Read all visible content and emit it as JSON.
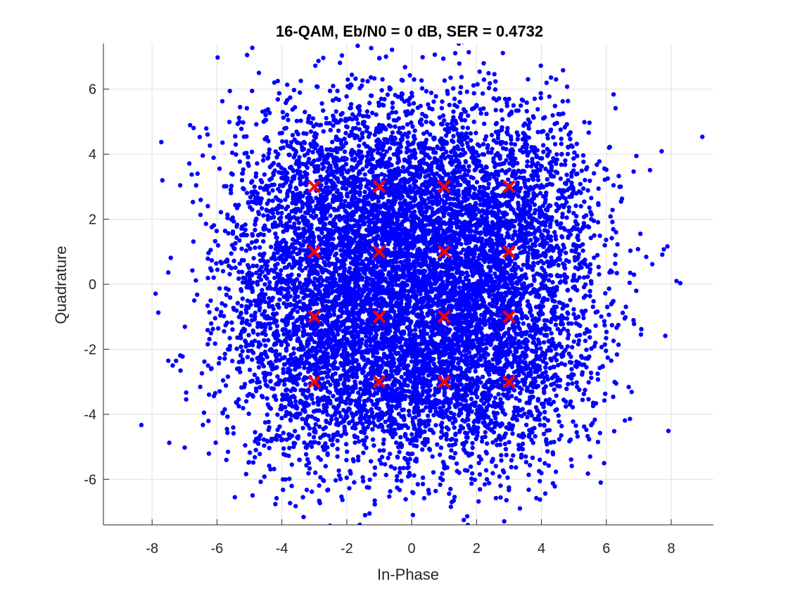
{
  "chart_data": {
    "type": "scatter",
    "title": "16-QAM, Eb/N0 = 0 dB, SER = 0.4732",
    "xlabel": "In-Phase",
    "ylabel": "Quadrature",
    "xlim": [
      -9.5,
      9.3
    ],
    "ylim": [
      -7.4,
      7.4
    ],
    "xticks": [
      -8,
      -6,
      -4,
      -2,
      0,
      2,
      4,
      6,
      8
    ],
    "yticks": [
      -6,
      -4,
      -2,
      0,
      2,
      4,
      6
    ],
    "grid": true,
    "legend": "none",
    "series": [
      {
        "marker": "dot",
        "color": "#0000ff",
        "description_values": "received symbols: 16-QAM constellation points plus complex Gaussian noise, sigma ~1.58 per dimension",
        "constellation_levels": [
          -3,
          -1,
          1,
          3
        ],
        "noise_sigma": 1.58,
        "approx_count": 10000,
        "outliers": [
          [
            1.45,
            7.4
          ],
          [
            -1.0,
            6.95
          ],
          [
            -0.9,
            6.3
          ],
          [
            1.2,
            6.35
          ],
          [
            4.45,
            6.3
          ],
          [
            -6.6,
            3.4
          ],
          [
            -6.7,
            -0.5
          ],
          [
            6.3,
            -3.05
          ],
          [
            6.15,
            -2.35
          ],
          [
            -5.45,
            -6.55
          ],
          [
            -3.35,
            -6.55
          ],
          [
            -1.6,
            -7.4
          ],
          [
            -1.3,
            -7.05
          ],
          [
            -6.4,
            -3.95
          ],
          [
            5.5,
            -5.3
          ]
        ]
      },
      {
        "marker": "x",
        "color": "#ff0000",
        "values": [
          [
            -3,
            3
          ],
          [
            -1,
            3
          ],
          [
            1,
            3
          ],
          [
            3,
            3
          ],
          [
            -3,
            1
          ],
          [
            -1,
            1
          ],
          [
            1,
            1
          ],
          [
            3,
            1
          ],
          [
            -3,
            -1
          ],
          [
            -1,
            -1
          ],
          [
            1,
            -1
          ],
          [
            3,
            -1
          ],
          [
            -3,
            -3
          ],
          [
            -1,
            -3
          ],
          [
            1,
            -3
          ],
          [
            3,
            -3
          ]
        ]
      }
    ]
  }
}
